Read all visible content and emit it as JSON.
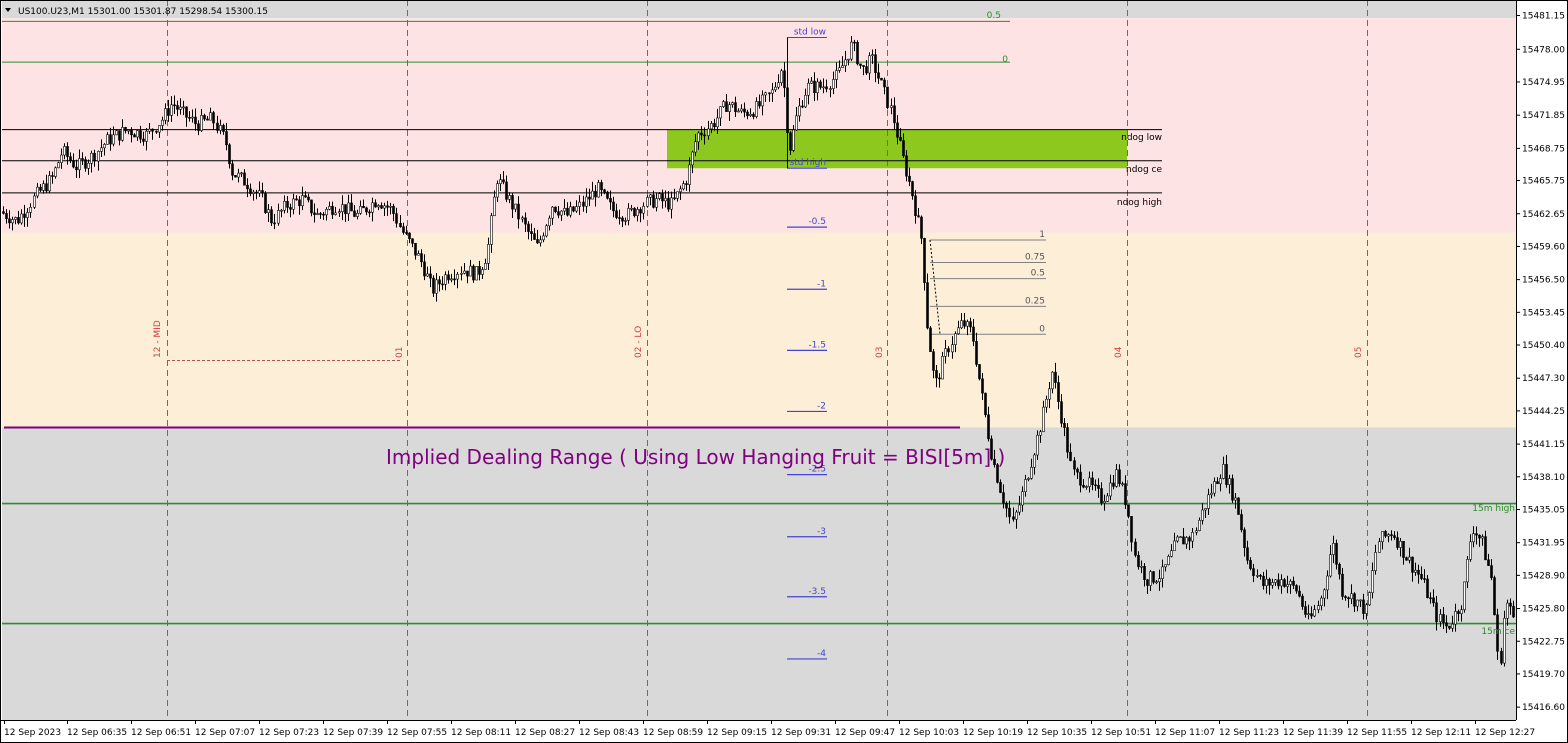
{
  "window": {
    "symbol_title": "US100.U23,M1  15301.00 15301.87 15298.54 15300.15",
    "menu_arrow_icon": "triangle-down-icon"
  },
  "colors": {
    "background": "#ffffff",
    "premium_zone": "#fde3e3",
    "discount_zone": "#fdeed8",
    "upper_gray": "#d9d9d9",
    "lower_gray": "#d9d9d9",
    "fvg_box": "#8cc81e",
    "green_level": "#2e8b2e",
    "purple_line": "#800080",
    "stdev_line": "#4444cc",
    "vline": "#d04040",
    "candle": "#000000"
  },
  "annotation": {
    "implied_range_text": "Implied Dealing Range ( Using Low Hanging Fruit = BISI[5m] )"
  },
  "chart_data": {
    "type": "candlestick",
    "timeframe": "M1",
    "y_axis": {
      "ylim": [
        15415.4,
        15482.6
      ],
      "ticks": [
        "15481.15",
        "15478.00",
        "15474.95",
        "15471.85",
        "15468.75",
        "15465.75",
        "15462.65",
        "15459.60",
        "15456.50",
        "15453.45",
        "15450.40",
        "15447.30",
        "15444.25",
        "15441.15",
        "15438.10",
        "15435.05",
        "15431.95",
        "15428.90",
        "15425.80",
        "15422.75",
        "15419.70",
        "15416.60"
      ]
    },
    "x_axis": {
      "ticks": [
        "12 Sep 2023",
        "12 Sep 06:35",
        "12 Sep 06:51",
        "12 Sep 07:07",
        "12 Sep 07:23",
        "12 Sep 07:39",
        "12 Sep 07:55",
        "12 Sep 08:11",
        "12 Sep 08:27",
        "12 Sep 08:43",
        "12 Sep 08:59",
        "12 Sep 09:15",
        "12 Sep 09:31",
        "12 Sep 09:47",
        "12 Sep 10:03",
        "12 Sep 10:19",
        "12 Sep 10:35",
        "12 Sep 10:51",
        "12 Sep 11:07",
        "12 Sep 11:23",
        "12 Sep 11:39",
        "12 Sep 11:55",
        "12 Sep 12:11",
        "12 Sep 12:27"
      ]
    },
    "zones": [
      {
        "name": "premium",
        "from": 15460.9,
        "to": 15480.9,
        "color": "#fde3e3"
      },
      {
        "name": "discount",
        "from": 15442.7,
        "to": 15460.9,
        "color": "#fdeed8"
      }
    ],
    "fvg_box": {
      "from": 15466.9,
      "to": 15470.5
    },
    "horizontal_levels": [
      {
        "label": "0.5",
        "price": 15480.6,
        "color": "#2e8b2e"
      },
      {
        "label": "0",
        "price": 15476.8,
        "color": "#2e8b2e"
      },
      {
        "label": "ndog low",
        "price": 15470.5,
        "color": "#000000"
      },
      {
        "label": "ndog ce",
        "price": 15467.6,
        "color": "#000000"
      },
      {
        "label": "ndog high",
        "price": 15464.6,
        "color": "#000000"
      },
      {
        "label": "15m high",
        "price": 15435.6,
        "color": "#2e8b2e"
      },
      {
        "label": "15m ce",
        "price": 15424.4,
        "color": "#2e8b2e"
      }
    ],
    "implied_range_line": {
      "price": 15442.7,
      "color": "#800080"
    },
    "std_dev_levels": [
      {
        "label": "std low",
        "price": 15479.1
      },
      {
        "label": "std high",
        "price": 15466.9
      },
      {
        "label": "-0.5",
        "price": 15461.4
      },
      {
        "label": "-1",
        "price": 15455.6
      },
      {
        "label": "-1.5",
        "price": 15449.9
      },
      {
        "label": "-2",
        "price": 15444.2
      },
      {
        "label": "-2.5",
        "price": 15438.3
      },
      {
        "label": "-3",
        "price": 15432.5
      },
      {
        "label": "-3.5",
        "price": 15426.9
      },
      {
        "label": "-4",
        "price": 15421.1
      }
    ],
    "fib_levels": [
      {
        "label": "1",
        "price": 15460.2
      },
      {
        "label": "0.75",
        "price": 15458.1
      },
      {
        "label": "0.5",
        "price": 15456.6
      },
      {
        "label": "0.25",
        "price": 15454.0
      },
      {
        "label": "0",
        "price": 15451.4
      }
    ],
    "session_markers": [
      {
        "label": "12 - MID"
      },
      {
        "label": "01"
      },
      {
        "label": "02 - LO"
      },
      {
        "label": "03"
      },
      {
        "label": "04"
      },
      {
        "label": "05"
      }
    ],
    "price_path": [
      [
        0,
        15463.0
      ],
      [
        20,
        15462.0
      ],
      [
        40,
        15464.5
      ],
      [
        55,
        15466.0
      ],
      [
        65,
        15468.5
      ],
      [
        80,
        15467.0
      ],
      [
        95,
        15468.0
      ],
      [
        110,
        15469.5
      ],
      [
        130,
        15470.5
      ],
      [
        150,
        15470.0
      ],
      [
        165,
        15471.5
      ],
      [
        175,
        15473.0
      ],
      [
        185,
        15472.0
      ],
      [
        200,
        15471.0
      ],
      [
        215,
        15471.5
      ],
      [
        228,
        15469.5
      ],
      [
        235,
        15466.5
      ],
      [
        250,
        15465.5
      ],
      [
        265,
        15464.0
      ],
      [
        275,
        15462.0
      ],
      [
        290,
        15463.5
      ],
      [
        305,
        15464.0
      ],
      [
        320,
        15462.5
      ],
      [
        340,
        15463.5
      ],
      [
        360,
        15462.5
      ],
      [
        380,
        15464.0
      ],
      [
        395,
        15463.0
      ],
      [
        405,
        15461.0
      ],
      [
        415,
        15459.5
      ],
      [
        425,
        15458.0
      ],
      [
        435,
        15455.5
      ],
      [
        450,
        15457.0
      ],
      [
        465,
        15457.5
      ],
      [
        480,
        15457.0
      ],
      [
        490,
        15459.0
      ],
      [
        500,
        15466.0
      ],
      [
        515,
        15463.5
      ],
      [
        530,
        15461.0
      ],
      [
        540,
        15459.5
      ],
      [
        555,
        15463.5
      ],
      [
        570,
        15462.5
      ],
      [
        585,
        15463.5
      ],
      [
        600,
        15465.0
      ],
      [
        615,
        15463.0
      ],
      [
        630,
        15462.5
      ],
      [
        645,
        15463.5
      ],
      [
        660,
        15464.0
      ],
      [
        675,
        15463.5
      ],
      [
        690,
        15466.0
      ],
      [
        700,
        15470.0
      ],
      [
        715,
        15471.0
      ],
      [
        730,
        15473.0
      ],
      [
        745,
        15472.0
      ],
      [
        760,
        15472.5
      ],
      [
        775,
        15474.0
      ],
      [
        785,
        15476.5
      ],
      [
        792,
        15468.5
      ],
      [
        800,
        15472.0
      ],
      [
        810,
        15474.5
      ],
      [
        825,
        15474.5
      ],
      [
        840,
        15475.5
      ],
      [
        855,
        15478.5
      ],
      [
        865,
        15476.0
      ],
      [
        875,
        15477.0
      ],
      [
        885,
        15474.5
      ],
      [
        895,
        15472.0
      ],
      [
        905,
        15468.0
      ],
      [
        915,
        15464.5
      ],
      [
        925,
        15460.0
      ],
      [
        930,
        15452.5
      ],
      [
        938,
        15446.5
      ],
      [
        950,
        15450.0
      ],
      [
        965,
        15452.5
      ],
      [
        975,
        15451.5
      ],
      [
        985,
        15445.5
      ],
      [
        995,
        15440.0
      ],
      [
        1005,
        15436.5
      ],
      [
        1015,
        15433.5
      ],
      [
        1025,
        15436.5
      ],
      [
        1035,
        15440.0
      ],
      [
        1045,
        15443.5
      ],
      [
        1055,
        15448.0
      ],
      [
        1065,
        15443.5
      ],
      [
        1075,
        15438.5
      ],
      [
        1090,
        15437.5
      ],
      [
        1105,
        15436.0
      ],
      [
        1120,
        15438.5
      ],
      [
        1130,
        15435.5
      ],
      [
        1138,
        15430.5
      ],
      [
        1150,
        15428.5
      ],
      [
        1165,
        15429.0
      ],
      [
        1180,
        15432.0
      ],
      [
        1195,
        15432.5
      ],
      [
        1210,
        15436.0
      ],
      [
        1225,
        15439.0
      ],
      [
        1240,
        15435.5
      ],
      [
        1250,
        15430.5
      ],
      [
        1265,
        15428.0
      ],
      [
        1285,
        15428.5
      ],
      [
        1300,
        15427.5
      ],
      [
        1312,
        15424.5
      ],
      [
        1325,
        15427.0
      ],
      [
        1335,
        15432.0
      ],
      [
        1345,
        15427.5
      ],
      [
        1360,
        15426.5
      ],
      [
        1370,
        15425.5
      ],
      [
        1380,
        15432.0
      ],
      [
        1395,
        15433.0
      ],
      [
        1410,
        15430.5
      ],
      [
        1425,
        15428.5
      ],
      [
        1440,
        15425.0
      ],
      [
        1450,
        15424.0
      ],
      [
        1465,
        15426.5
      ],
      [
        1475,
        15433.5
      ],
      [
        1485,
        15432.0
      ],
      [
        1495,
        15428.5
      ],
      [
        1502,
        15419.5
      ],
      [
        1508,
        15426.5
      ],
      [
        1516,
        15425.0
      ]
    ]
  }
}
